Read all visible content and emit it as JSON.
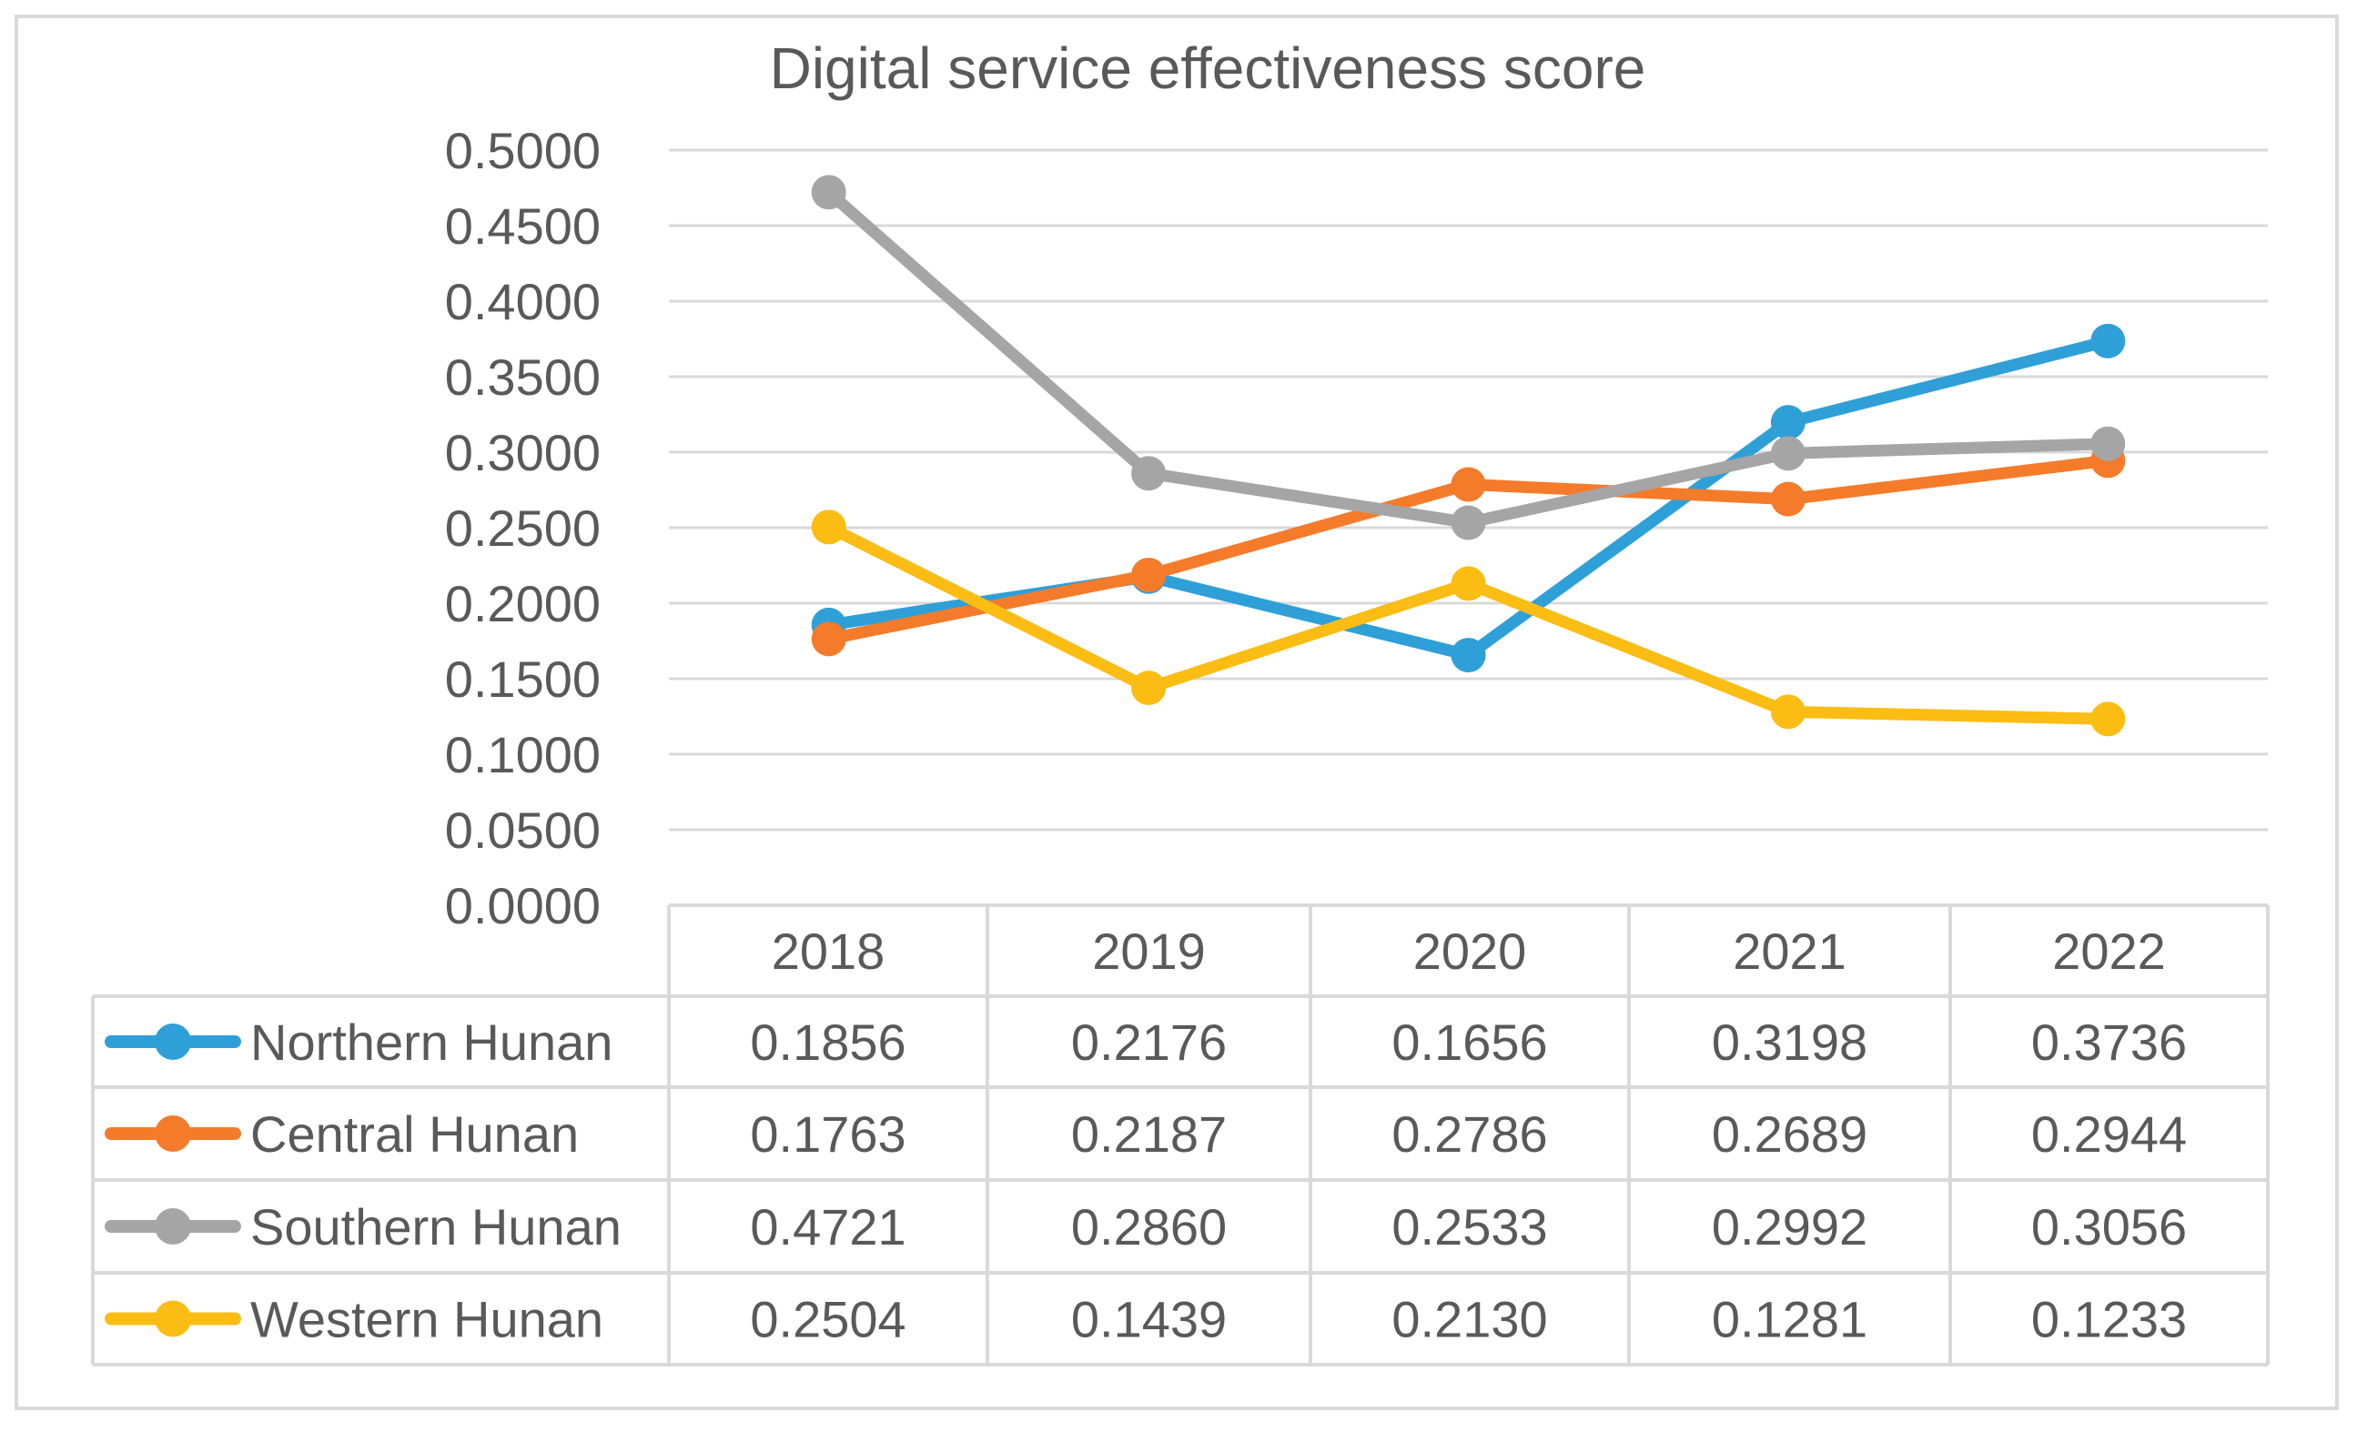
{
  "chart_data": {
    "type": "line",
    "title": "Digital service effectiveness score",
    "categories": [
      "2018",
      "2019",
      "2020",
      "2021",
      "2022"
    ],
    "ylim": [
      0,
      0.5
    ],
    "yticks": [
      "0.0000",
      "0.0500",
      "0.1000",
      "0.1500",
      "0.2000",
      "0.2500",
      "0.3000",
      "0.3500",
      "0.4000",
      "0.4500",
      "0.5000"
    ],
    "grid": true,
    "legend": "data-table",
    "series": [
      {
        "name": "Northern Hunan",
        "color": "#2f9fd8",
        "values": [
          0.1856,
          0.2176,
          0.1656,
          0.3198,
          0.3736
        ],
        "labels": [
          "0.1856",
          "0.2176",
          "0.1656",
          "0.3198",
          "0.3736"
        ]
      },
      {
        "name": "Central Hunan",
        "color": "#f47b2a",
        "values": [
          0.1763,
          0.2187,
          0.2786,
          0.2689,
          0.2944
        ],
        "labels": [
          "0.1763",
          "0.2187",
          "0.2786",
          "0.2689",
          "0.2944"
        ]
      },
      {
        "name": "Southern Hunan",
        "color": "#a5a5a5",
        "values": [
          0.4721,
          0.286,
          0.2533,
          0.2992,
          0.3056
        ],
        "labels": [
          "0.4721",
          "0.2860",
          "0.2533",
          "0.2992",
          "0.3056"
        ]
      },
      {
        "name": "Western Hunan",
        "color": "#fbbd14",
        "values": [
          0.2504,
          0.1439,
          0.213,
          0.1281,
          0.1233
        ],
        "labels": [
          "0.2504",
          "0.1439",
          "0.2130",
          "0.1281",
          "0.1233"
        ]
      }
    ]
  }
}
